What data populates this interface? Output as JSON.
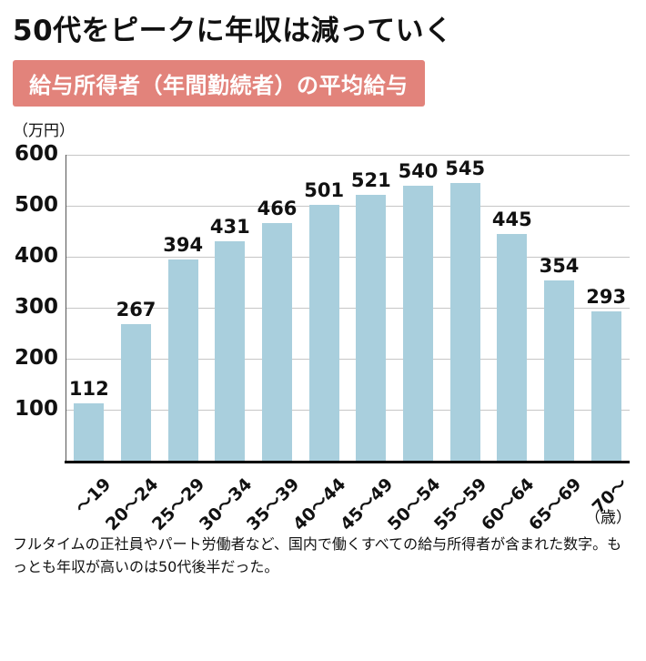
{
  "page": {
    "title": "50代をピークに年収は減っていく",
    "subtitle": "給与所得者（年間勤続者）の平均給与",
    "y_axis_unit": "（万円）",
    "x_axis_unit": "（歳）",
    "footer": "フルタイムの正社員やパート労働者など、国内で働くすべての給与所得者が含まれた数字。もっとも年収が高いのは50代後半だった。"
  },
  "chart_data": {
    "type": "bar",
    "title": "給与所得者（年間勤続者）の平均給与",
    "categories": [
      "～19",
      "20～24",
      "25～29",
      "30～34",
      "35～39",
      "40～44",
      "45～49",
      "50～54",
      "55～59",
      "60～64",
      "65～69",
      "70～"
    ],
    "values": [
      112,
      267,
      394,
      431,
      466,
      501,
      521,
      540,
      545,
      445,
      354,
      293
    ],
    "xlabel": "（歳）",
    "ylabel": "（万円）",
    "ylim": [
      0,
      600
    ],
    "ytick_step": 100,
    "grid": true,
    "legend": false,
    "bar_color": "#a9cfdd"
  }
}
